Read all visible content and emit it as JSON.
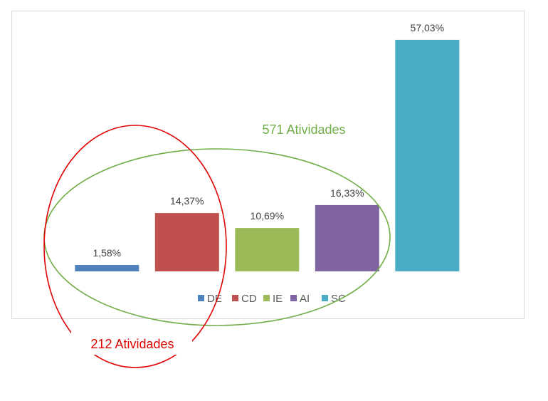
{
  "chart_data": {
    "type": "bar",
    "title": "",
    "xlabel": "",
    "ylabel": "",
    "ylim": [
      0,
      60
    ],
    "grid": false,
    "legend": "bottom",
    "categories": [
      "DE",
      "CD",
      "IE",
      "AI",
      "SC"
    ],
    "values": [
      1.58,
      14.37,
      10.69,
      16.33,
      57.03
    ],
    "data_labels": [
      "1,58%",
      "14,37%",
      "10,69%",
      "16,33%",
      "57,03%"
    ],
    "colors": [
      "#4f81bd",
      "#c0504d",
      "#9bbb59",
      "#8064a2",
      "#4bacc6"
    ]
  },
  "annotations": {
    "green_label": "571 Atividades",
    "green_color": "#70ad47",
    "red_label": "212 Atividades",
    "red_color": "#e00000"
  }
}
